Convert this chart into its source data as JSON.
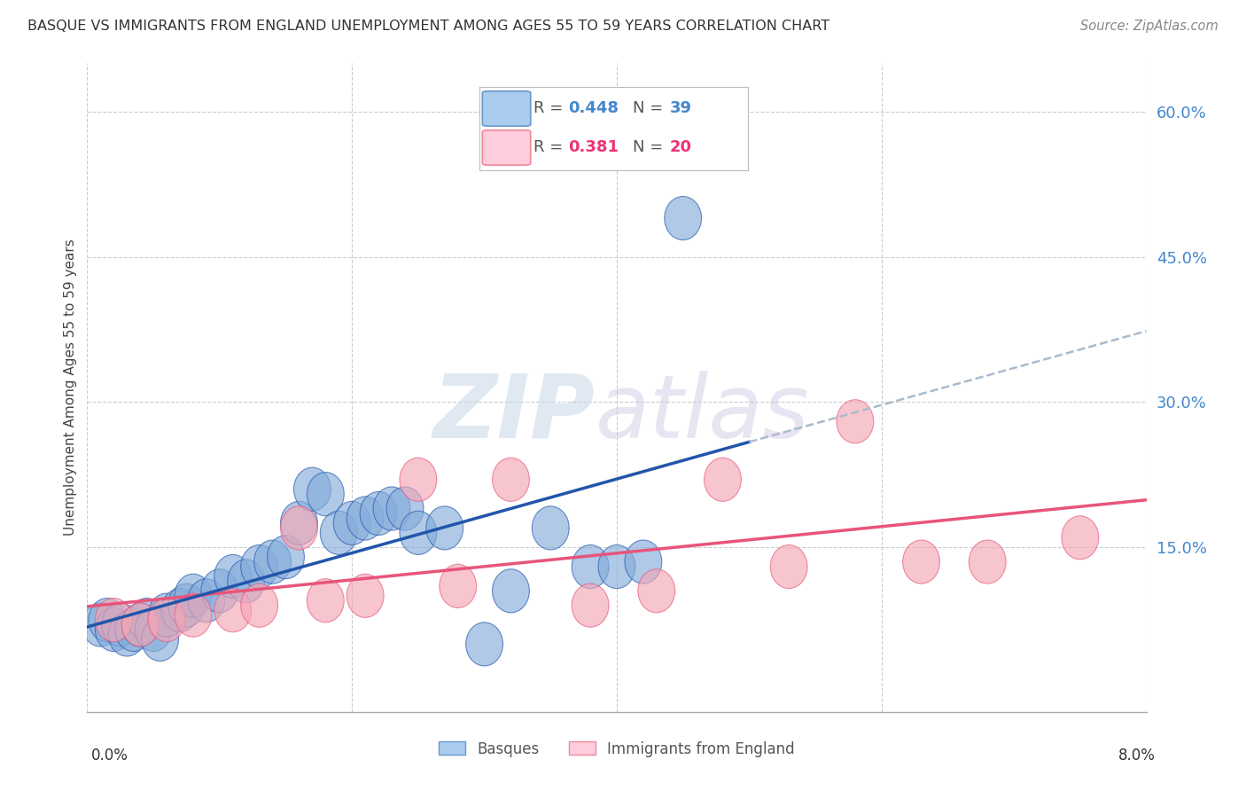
{
  "title": "BASQUE VS IMMIGRANTS FROM ENGLAND UNEMPLOYMENT AMONG AGES 55 TO 59 YEARS CORRELATION CHART",
  "source": "Source: ZipAtlas.com",
  "ylabel": "Unemployment Among Ages 55 to 59 years",
  "right_yticks": [
    "60.0%",
    "45.0%",
    "30.0%",
    "15.0%"
  ],
  "right_ytick_vals": [
    60.0,
    45.0,
    30.0,
    15.0
  ],
  "xlim": [
    0.0,
    8.0
  ],
  "ylim": [
    -2.0,
    65.0
  ],
  "basques_R": "0.448",
  "basques_N": "39",
  "immigrants_R": "0.381",
  "immigrants_N": "20",
  "blue_color": "#85ADDB",
  "pink_color": "#F4A7B5",
  "blue_line_color": "#2255AA",
  "pink_line_color": "#E8557A",
  "dashed_line_color": "#AABBCC",
  "background_color": "#FFFFFF",
  "grid_color": "#CCCCCC",
  "basques_x": [
    0.1,
    0.15,
    0.2,
    0.25,
    0.3,
    0.35,
    0.4,
    0.45,
    0.5,
    0.55,
    0.6,
    0.7,
    0.75,
    0.8,
    0.9,
    1.0,
    1.1,
    1.2,
    1.3,
    1.4,
    1.5,
    1.6,
    1.7,
    1.8,
    1.9,
    2.0,
    2.1,
    2.2,
    2.3,
    2.4,
    2.5,
    2.7,
    3.0,
    3.2,
    3.5,
    3.8,
    4.0,
    4.2,
    4.5
  ],
  "basques_y": [
    7.0,
    7.5,
    6.5,
    7.0,
    6.0,
    6.5,
    7.0,
    7.5,
    6.5,
    5.5,
    8.0,
    8.5,
    9.0,
    10.0,
    9.5,
    10.5,
    12.0,
    11.5,
    13.0,
    13.5,
    14.0,
    17.5,
    21.0,
    20.5,
    16.5,
    17.5,
    18.0,
    18.5,
    19.0,
    19.0,
    16.5,
    17.0,
    5.0,
    10.5,
    17.0,
    13.0,
    13.0,
    13.5,
    49.0
  ],
  "immigrants_x": [
    0.2,
    0.4,
    0.6,
    0.8,
    1.1,
    1.3,
    1.6,
    1.8,
    2.1,
    2.5,
    2.8,
    3.2,
    3.8,
    4.3,
    4.8,
    5.3,
    5.8,
    6.3,
    6.8,
    7.5
  ],
  "immigrants_y": [
    7.5,
    7.0,
    7.5,
    8.0,
    8.5,
    9.0,
    17.0,
    9.5,
    10.0,
    22.0,
    11.0,
    22.0,
    9.0,
    10.5,
    22.0,
    13.0,
    28.0,
    13.5,
    13.5,
    16.0
  ],
  "xtick_positions": [
    0.0,
    2.0,
    4.0,
    6.0,
    8.0
  ],
  "blue_solid_x_end": 5.0,
  "watermark_zip_color": "#C8D8E8",
  "watermark_atlas_color": "#D0C4E0"
}
